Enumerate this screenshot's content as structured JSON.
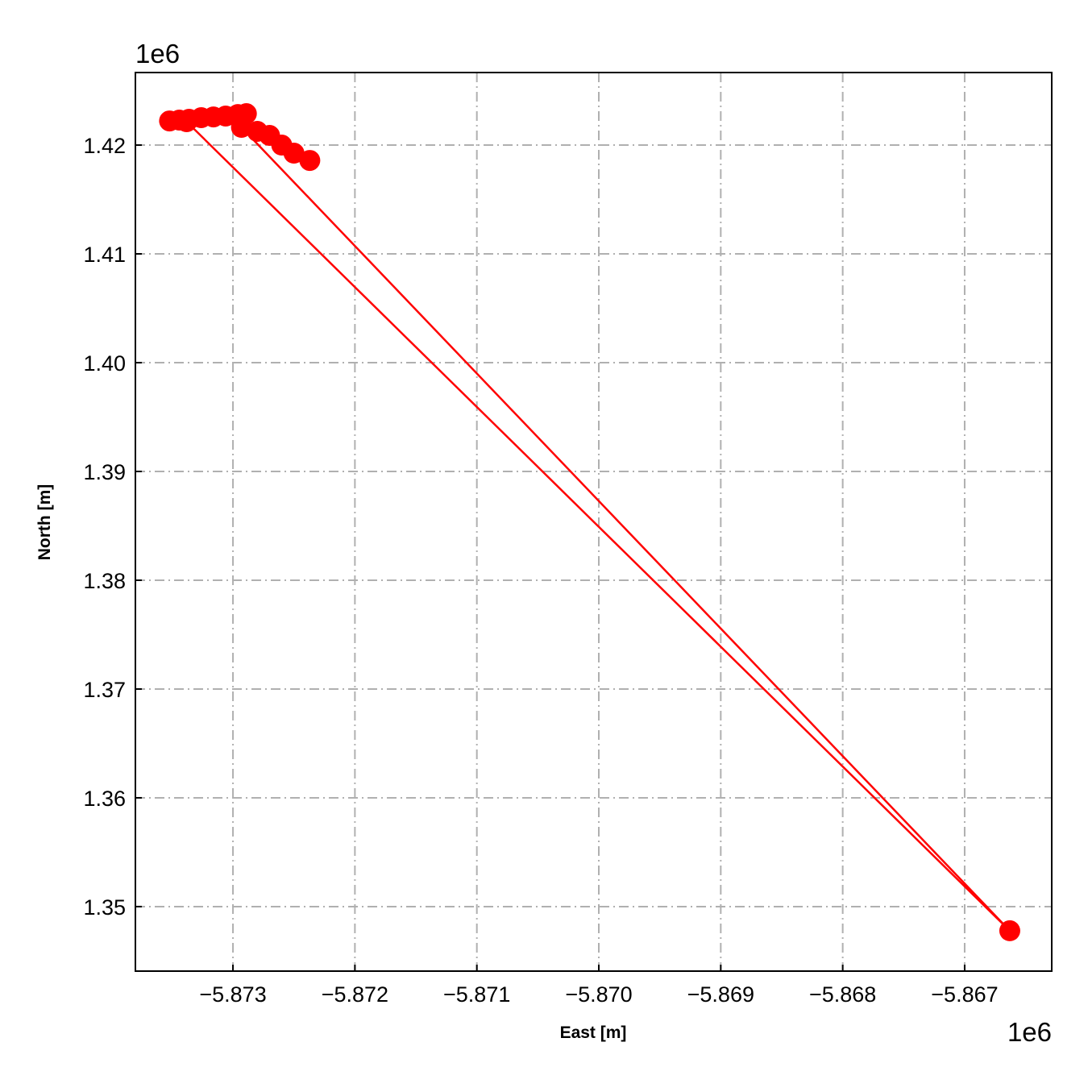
{
  "chart_data": {
    "type": "line",
    "xlabel": "East [m]",
    "ylabel": "North [m]",
    "x_offset_label": "1e6",
    "y_offset_label": "1e6",
    "x": [
      -5.87352,
      -5.87344,
      -5.87336,
      -5.87326,
      -5.87316,
      -5.87306,
      -5.87296,
      -5.87289,
      -5.87338,
      -5.86663,
      -5.87293,
      -5.8728,
      -5.8727,
      -5.8726,
      -5.8725,
      -5.87237
    ],
    "series": [
      {
        "color": "#ff0000",
        "values": [
          1.42222,
          1.4223,
          1.42237,
          1.42252,
          1.42259,
          1.42267,
          1.42281,
          1.42289,
          1.42215,
          1.34778,
          1.42163,
          1.42126,
          1.42089,
          1.42,
          1.41926,
          1.41859
        ]
      }
    ],
    "markers": true,
    "xlim": [
      -5.8738,
      -5.866286
    ],
    "ylim": [
      1.34407,
      1.42667
    ],
    "xticks": [
      {
        "value": -5.873,
        "label": "−5.873"
      },
      {
        "value": -5.872,
        "label": "−5.872"
      },
      {
        "value": -5.871,
        "label": "−5.871"
      },
      {
        "value": -5.87,
        "label": "−5.870"
      },
      {
        "value": -5.869,
        "label": "−5.869"
      },
      {
        "value": -5.868,
        "label": "−5.868"
      },
      {
        "value": -5.867,
        "label": "−5.867"
      }
    ],
    "yticks": [
      1.35,
      1.36,
      1.37,
      1.38,
      1.39,
      {
        "value": 1.4,
        "label": "1.40"
      },
      1.41,
      1.42
    ],
    "grid": true
  }
}
